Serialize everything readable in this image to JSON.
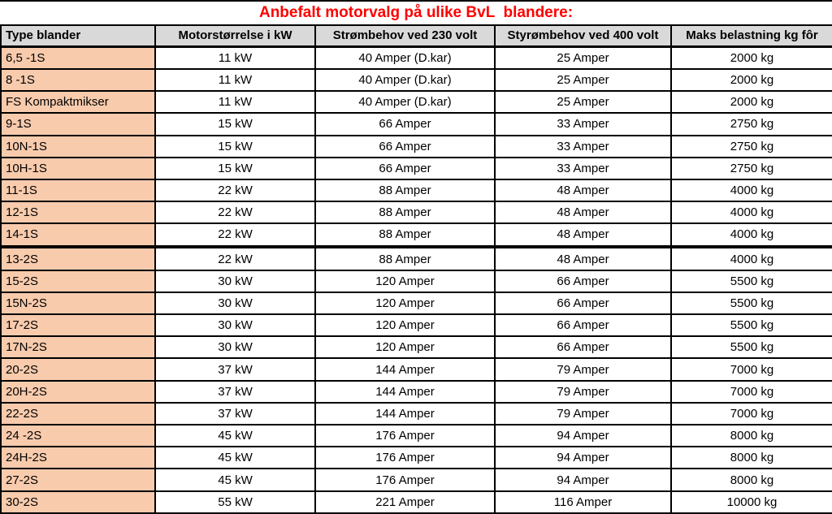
{
  "title": "Anbefalt motorvalg på ulike BvL  blandere:",
  "colors": {
    "title_red": "#FF0000",
    "header_bg": "#D9D9D9",
    "label_bg": "#F8CBAD",
    "border": "#000000"
  },
  "table": {
    "headers": [
      "Type blander",
      "Motorstørrelse i kW",
      "Strømbehov ved 230 volt",
      "Styrømbehov ved 400 volt",
      "Maks belastning kg fôr"
    ],
    "rows": [
      [
        "6,5 -1S",
        "11 kW",
        "40 Amper (D.kar)",
        "25 Amper",
        "2000 kg"
      ],
      [
        "8 -1S",
        "11 kW",
        "40 Amper (D.kar)",
        "25 Amper",
        "2000 kg"
      ],
      [
        "FS Kompaktmikser",
        "11 kW",
        "40 Amper (D.kar)",
        "25 Amper",
        "2000 kg"
      ],
      [
        "9-1S",
        "15 kW",
        "66 Amper",
        "33 Amper",
        "2750 kg"
      ],
      [
        "10N-1S",
        "15 kW",
        "66 Amper",
        "33 Amper",
        "2750 kg"
      ],
      [
        "10H-1S",
        "15 kW",
        "66 Amper",
        "33 Amper",
        "2750 kg"
      ],
      [
        "11-1S",
        "22 kW",
        "88 Amper",
        "48 Amper",
        "4000 kg"
      ],
      [
        "12-1S",
        "22 kW",
        "88 Amper",
        "48 Amper",
        "4000 kg"
      ],
      [
        "14-1S",
        "22 kW",
        "88 Amper",
        "48 Amper",
        "4000 kg"
      ],
      [
        "",
        "",
        "",
        "",
        ""
      ],
      [
        "13-2S",
        "22 kW",
        "88 Amper",
        "48 Amper",
        "4000 kg"
      ],
      [
        "15-2S",
        "30 kW",
        "120 Amper",
        "66 Amper",
        "5500 kg"
      ],
      [
        "15N-2S",
        "30 kW",
        "120 Amper",
        "66 Amper",
        "5500 kg"
      ],
      [
        "17-2S",
        "30 kW",
        "120 Amper",
        "66 Amper",
        "5500 kg"
      ],
      [
        "17N-2S",
        "30 kW",
        "120 Amper",
        "66 Amper",
        "5500 kg"
      ],
      [
        "20-2S",
        "37 kW",
        "144 Amper",
        "79 Amper",
        "7000 kg"
      ],
      [
        "20H-2S",
        "37 kW",
        "144 Amper",
        "79 Amper",
        "7000 kg"
      ],
      [
        "22-2S",
        "37 kW",
        "144 Amper",
        "79 Amper",
        "7000 kg"
      ],
      [
        "24 -2S",
        "45 kW",
        "176 Amper",
        "94 Amper",
        "8000 kg"
      ],
      [
        "24H-2S",
        "45 kW",
        "176 Amper",
        "94 Amper",
        "8000 kg"
      ],
      [
        "27-2S",
        "45 kW",
        "176 Amper",
        "94 Amper",
        "8000 kg"
      ],
      [
        "30-2S",
        "55 kW",
        "221 Amper",
        "116 Amper",
        "10000 kg"
      ]
    ]
  }
}
